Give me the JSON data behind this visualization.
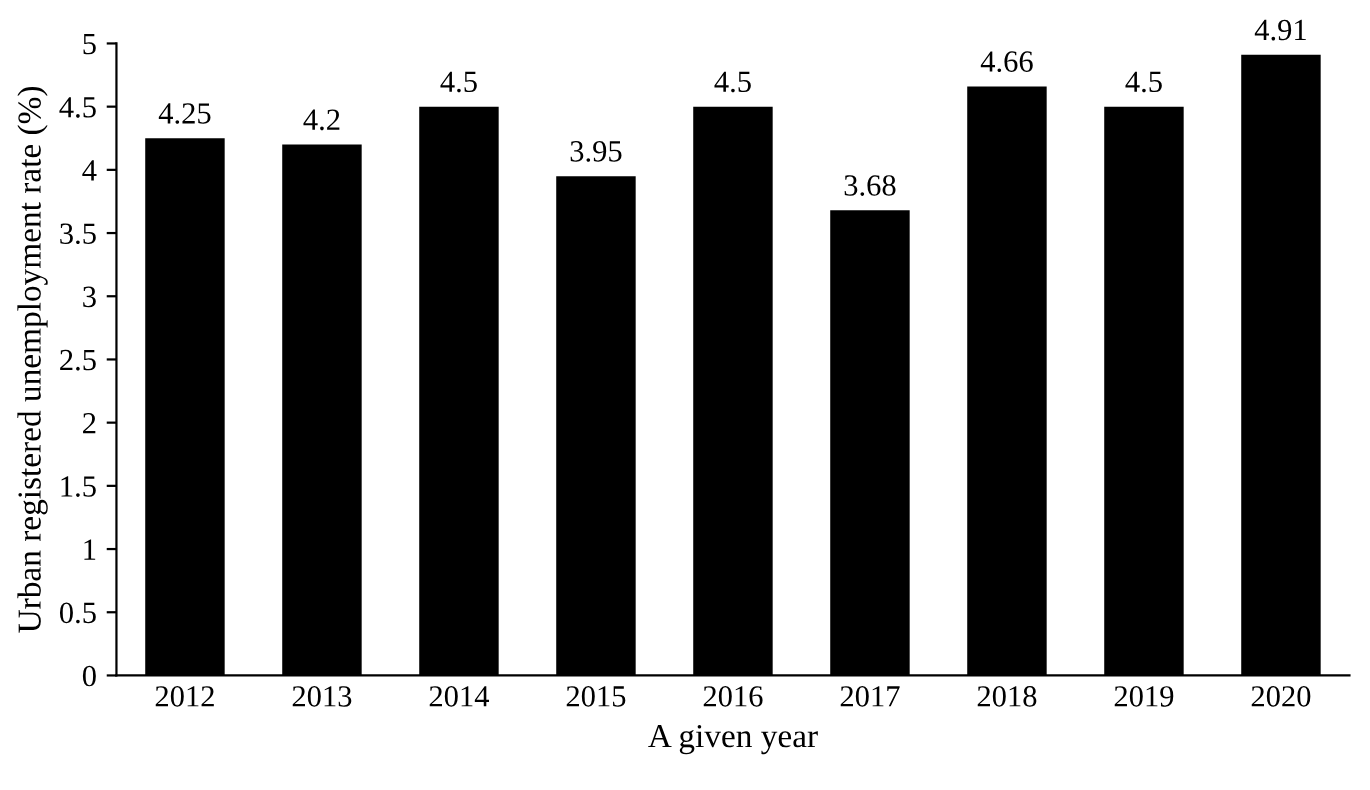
{
  "chart_data": {
    "type": "bar",
    "xlabel": "A given year",
    "ylabel": "Urban registered unemployment rate (%)",
    "categories": [
      "2012",
      "2013",
      "2014",
      "2015",
      "2016",
      "2017",
      "2018",
      "2019",
      "2020"
    ],
    "values": [
      4.25,
      4.2,
      4.5,
      3.95,
      4.5,
      3.68,
      4.66,
      4.5,
      4.91
    ],
    "color": "#000000",
    "ylim": [
      0,
      5
    ],
    "yticks": [
      0,
      0.5,
      1,
      1.5,
      2,
      2.5,
      3,
      3.5,
      4,
      4.5,
      5
    ],
    "data_labels": true,
    "grid": false,
    "legend": false
  }
}
